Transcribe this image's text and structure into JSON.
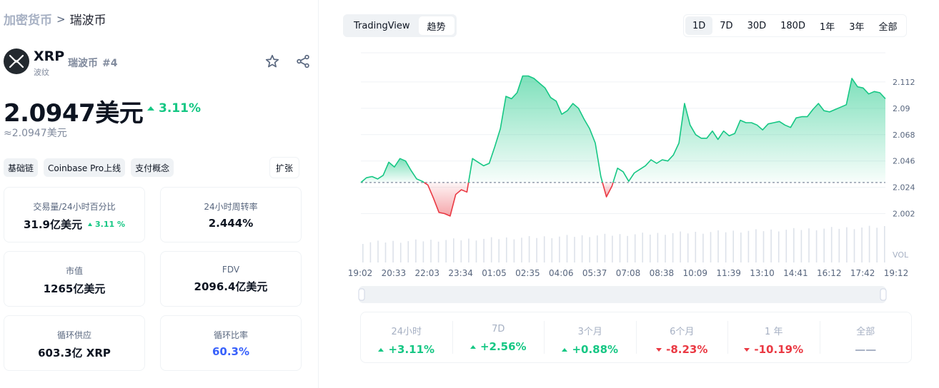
{
  "breadcrumb": {
    "root": "加密货币",
    "current": "瑞波币"
  },
  "coin": {
    "symbol": "XRP",
    "subtitle": "波纹",
    "name": "瑞波币",
    "rank": "#4",
    "logo_icon": "xrp-logo-icon"
  },
  "price": {
    "value": "2.0947美元",
    "change": "3.11%",
    "converted": "≈2.0947美元"
  },
  "tags": [
    "基础链",
    "Coinbase Pro上线",
    "支付概念"
  ],
  "expand_label": "扩张",
  "stats": {
    "volume": {
      "label": "交易量/24小时百分比",
      "value": "31.9亿美元",
      "change": "3.11 %"
    },
    "turnover": {
      "label": "24小时周转率",
      "value": "2.444%"
    },
    "market_cap": {
      "label": "市值",
      "value": "1265亿美元"
    },
    "fdv": {
      "label": "FDV",
      "value": "2096.4亿美元"
    },
    "circ_supply": {
      "label": "循环供应",
      "value": "603.3亿 XRP"
    },
    "circ_ratio": {
      "label": "循环比率",
      "value": "60.3%"
    }
  },
  "chart_toggle": {
    "tradingview": "TradingView",
    "trend": "趋势"
  },
  "ranges": [
    "1D",
    "7D",
    "30D",
    "180D",
    "1年",
    "3年",
    "全部"
  ],
  "chart_data": {
    "type": "area",
    "baseline": 2.028,
    "y_ticks": [
      2.112,
      2.09,
      2.068,
      2.046,
      2.024,
      2.002
    ],
    "ylim": [
      1.991,
      2.134
    ],
    "volume_label": "VOL",
    "x_ticks": [
      "19:02",
      "20:33",
      "22:03",
      "23:34",
      "01:05",
      "02:35",
      "04:06",
      "05:37",
      "07:08",
      "08:38",
      "10:09",
      "11:39",
      "13:10",
      "14:41",
      "16:12",
      "17:42",
      "19:12"
    ],
    "values": [
      2.028,
      2.032,
      2.033,
      2.031,
      2.034,
      2.045,
      2.041,
      2.048,
      2.046,
      2.038,
      2.031,
      2.029,
      2.026,
      2.015,
      2.003,
      2.002,
      2.0,
      2.018,
      2.022,
      2.02,
      2.048,
      2.045,
      2.042,
      2.044,
      2.058,
      2.073,
      2.1,
      2.098,
      2.103,
      2.117,
      2.117,
      2.115,
      2.111,
      2.107,
      2.099,
      2.096,
      2.085,
      2.088,
      2.094,
      2.09,
      2.081,
      2.073,
      2.061,
      2.033,
      2.016,
      2.025,
      2.04,
      2.037,
      2.029,
      2.036,
      2.039,
      2.042,
      2.047,
      2.044,
      2.047,
      2.046,
      2.051,
      2.061,
      2.094,
      2.076,
      2.068,
      2.065,
      2.065,
      2.071,
      2.064,
      2.071,
      2.067,
      2.069,
      2.08,
      2.078,
      2.078,
      2.076,
      2.072,
      2.077,
      2.078,
      2.079,
      2.076,
      2.074,
      2.082,
      2.083,
      2.083,
      2.089,
      2.094,
      2.088,
      2.087,
      2.089,
      2.091,
      2.093,
      2.115,
      2.108,
      2.107,
      2.102,
      2.104,
      2.103,
      2.098
    ]
  },
  "performance": [
    {
      "label": "24小时",
      "value": "+3.11%",
      "dir": "up"
    },
    {
      "label": "7D",
      "value": "+2.56%",
      "dir": "up"
    },
    {
      "label": "3个月",
      "value": "+0.88%",
      "dir": "up"
    },
    {
      "label": "6个月",
      "value": "-8.23%",
      "dir": "down"
    },
    {
      "label": "1 年",
      "value": "-10.19%",
      "dir": "down"
    },
    {
      "label": "全部",
      "value": "——",
      "dir": "neutral"
    }
  ]
}
